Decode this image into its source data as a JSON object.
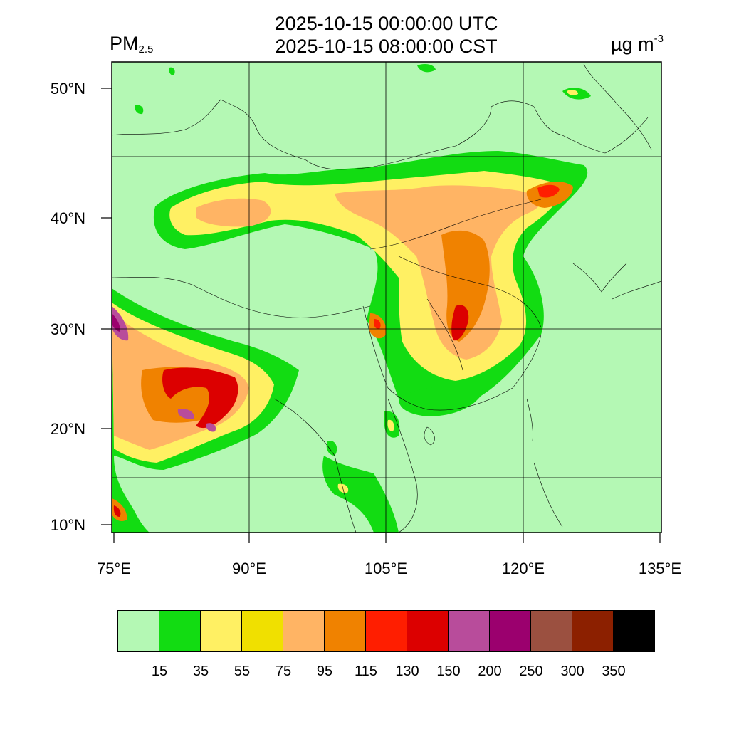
{
  "header": {
    "time_utc": "2025-10-15 00:00:00 UTC",
    "time_cst": "2025-10-15 08:00:00 CST",
    "variable": "PM",
    "variable_sub": "2.5",
    "unit": "µg m",
    "unit_sup": "-3"
  },
  "axes": {
    "lat_labels": [
      "50°N",
      "40°N",
      "30°N",
      "20°N",
      "10°N"
    ],
    "lon_labels": [
      "75°E",
      "90°E",
      "105°E",
      "120°E",
      "135°E"
    ]
  },
  "colorbar": {
    "colors": [
      "#b4f8b4",
      "#12dc12",
      "#fff063",
      "#f0e000",
      "#ffb464",
      "#f08200",
      "#ff1e00",
      "#dc0000",
      "#b84c9b",
      "#9b006e",
      "#9b5040",
      "#8c2000",
      "#000000"
    ],
    "labels": [
      "15",
      "35",
      "55",
      "75",
      "95",
      "115",
      "130",
      "150",
      "200",
      "250",
      "300",
      "350"
    ]
  }
}
